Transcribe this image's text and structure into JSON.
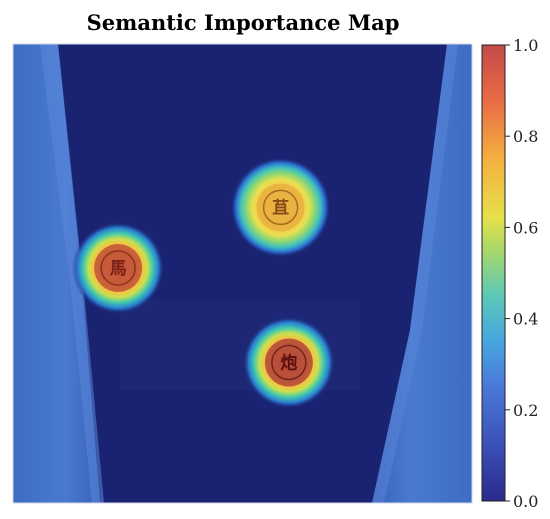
{
  "chart_data": {
    "type": "heatmap",
    "title": "Semantic Importance Map",
    "xlabel": "",
    "ylabel": "",
    "colormap": "jet",
    "colorbar": {
      "range": [
        0.0,
        1.0
      ],
      "ticks": [
        "0.0",
        "0.2",
        "0.4",
        "0.6",
        "0.8",
        "1.0"
      ],
      "placement": "right"
    },
    "background": {
      "description_colors": {
        "floor": "#1a2372",
        "side_walls": "#3f6cc4"
      }
    },
    "hotspots": [
      {
        "label": "馬",
        "value": 0.95,
        "cx": 0.229,
        "cy": 0.488,
        "piece_color": "#c0573a",
        "char_color": "#7a1f14"
      },
      {
        "label": "苴",
        "value": 0.78,
        "cx": 0.583,
        "cy": 0.356,
        "piece_color": "#e8b040",
        "char_color": "#8c4a16"
      },
      {
        "label": "炮",
        "value": 1.0,
        "cx": 0.601,
        "cy": 0.694,
        "piece_color": "#b04a3a",
        "char_color": "#5a1010"
      }
    ]
  }
}
